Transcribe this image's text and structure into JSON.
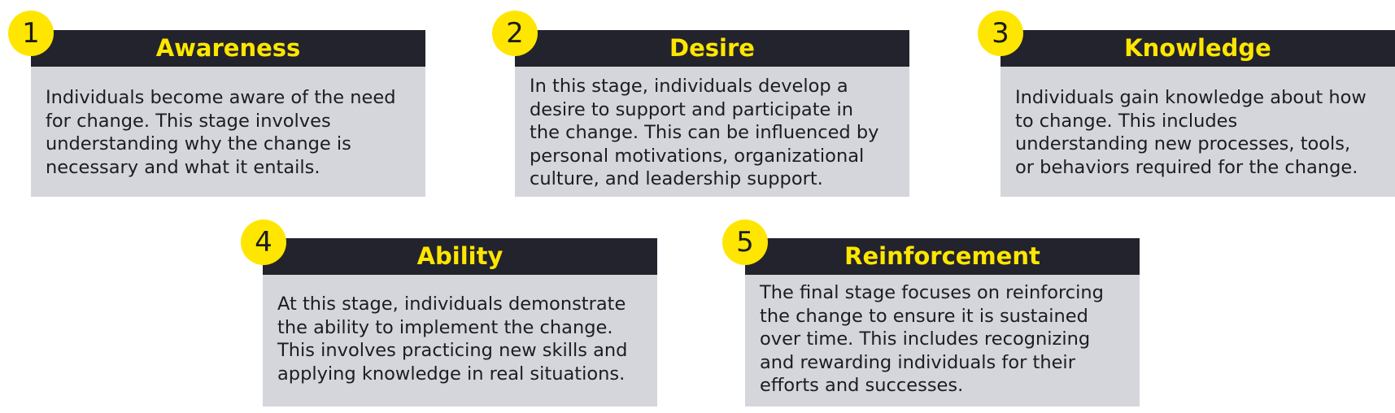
{
  "colors": {
    "accent": "#ffe600",
    "header_bg": "#23232d",
    "body_bg": "#d5d6dc"
  },
  "stages": [
    {
      "number": "1",
      "title": "Awareness",
      "text": "Individuals become aware of the need\nfor change. This stage involves\nunderstanding why the change is\nnecessary and what it entails."
    },
    {
      "number": "2",
      "title": "Desire",
      "text": "In this stage, individuals develop a\ndesire to support and participate in\nthe change. This can be influenced by\npersonal motivations, organizational\nculture, and leadership support."
    },
    {
      "number": "3",
      "title": "Knowledge",
      "text": "Individuals gain knowledge about how\nto change. This includes\nunderstanding new processes, tools,\nor behaviors required for the change."
    },
    {
      "number": "4",
      "title": "Ability",
      "text": "At this stage, individuals demonstrate\nthe ability to implement the change.\nThis involves practicing new skills and\napplying knowledge in real situations."
    },
    {
      "number": "5",
      "title": "Reinforcement",
      "text": "The final stage focuses on reinforcing\nthe change to ensure it is sustained\nover time. This includes recognizing\nand rewarding individuals for their\nefforts and successes."
    }
  ]
}
